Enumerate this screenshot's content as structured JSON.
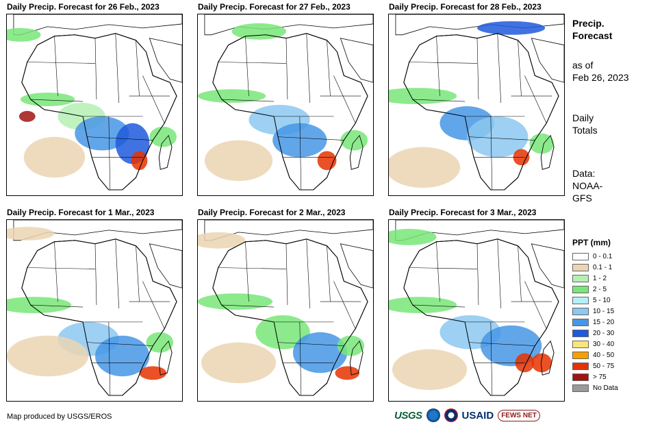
{
  "panels": [
    {
      "title": "Daily Precip. Forecast for 26 Feb., 2023"
    },
    {
      "title": "Daily Precip. Forecast for 27 Feb., 2023"
    },
    {
      "title": "Daily Precip. Forecast for 28 Feb., 2023"
    },
    {
      "title": "Daily Precip. Forecast for 1 Mar., 2023"
    },
    {
      "title": "Daily Precip. Forecast for 2 Mar., 2023"
    },
    {
      "title": "Daily Precip. Forecast for 3 Mar., 2023"
    }
  ],
  "side": {
    "heading_line1": "Precip.",
    "heading_line2": "Forecast",
    "asof_line1": "as of",
    "asof_line2": "Feb 26, 2023",
    "totals_line1": "Daily",
    "totals_line2": "Totals",
    "data_line1": "Data:",
    "data_line2": "NOAA-",
    "data_line3": "GFS"
  },
  "legend": {
    "title": "PPT (mm)",
    "items": [
      {
        "label": "0 - 0.1",
        "color": "#ffffff"
      },
      {
        "label": "0.1 - 1",
        "color": "#ebd5b3"
      },
      {
        "label": "1 - 2",
        "color": "#b4f0b4"
      },
      {
        "label": "2 - 5",
        "color": "#78e678"
      },
      {
        "label": "5 - 10",
        "color": "#b4f0f5"
      },
      {
        "label": "10 - 15",
        "color": "#8cc8f0"
      },
      {
        "label": "15 - 20",
        "color": "#4696e6"
      },
      {
        "label": "20 - 30",
        "color": "#1e5adc"
      },
      {
        "label": "30 - 40",
        "color": "#fae678"
      },
      {
        "label": "40 - 50",
        "color": "#f5a000"
      },
      {
        "label": "50 - 75",
        "color": "#e63200"
      },
      {
        "label": "> 75",
        "color": "#a01414"
      },
      {
        "label": "No Data",
        "color": "#9a9a9a"
      }
    ]
  },
  "footer": {
    "credit": "Map produced by USGS/EROS",
    "logo_usgs": "USGS",
    "logo_usaid": "USAID",
    "logo_fews": "FEWS NET"
  }
}
